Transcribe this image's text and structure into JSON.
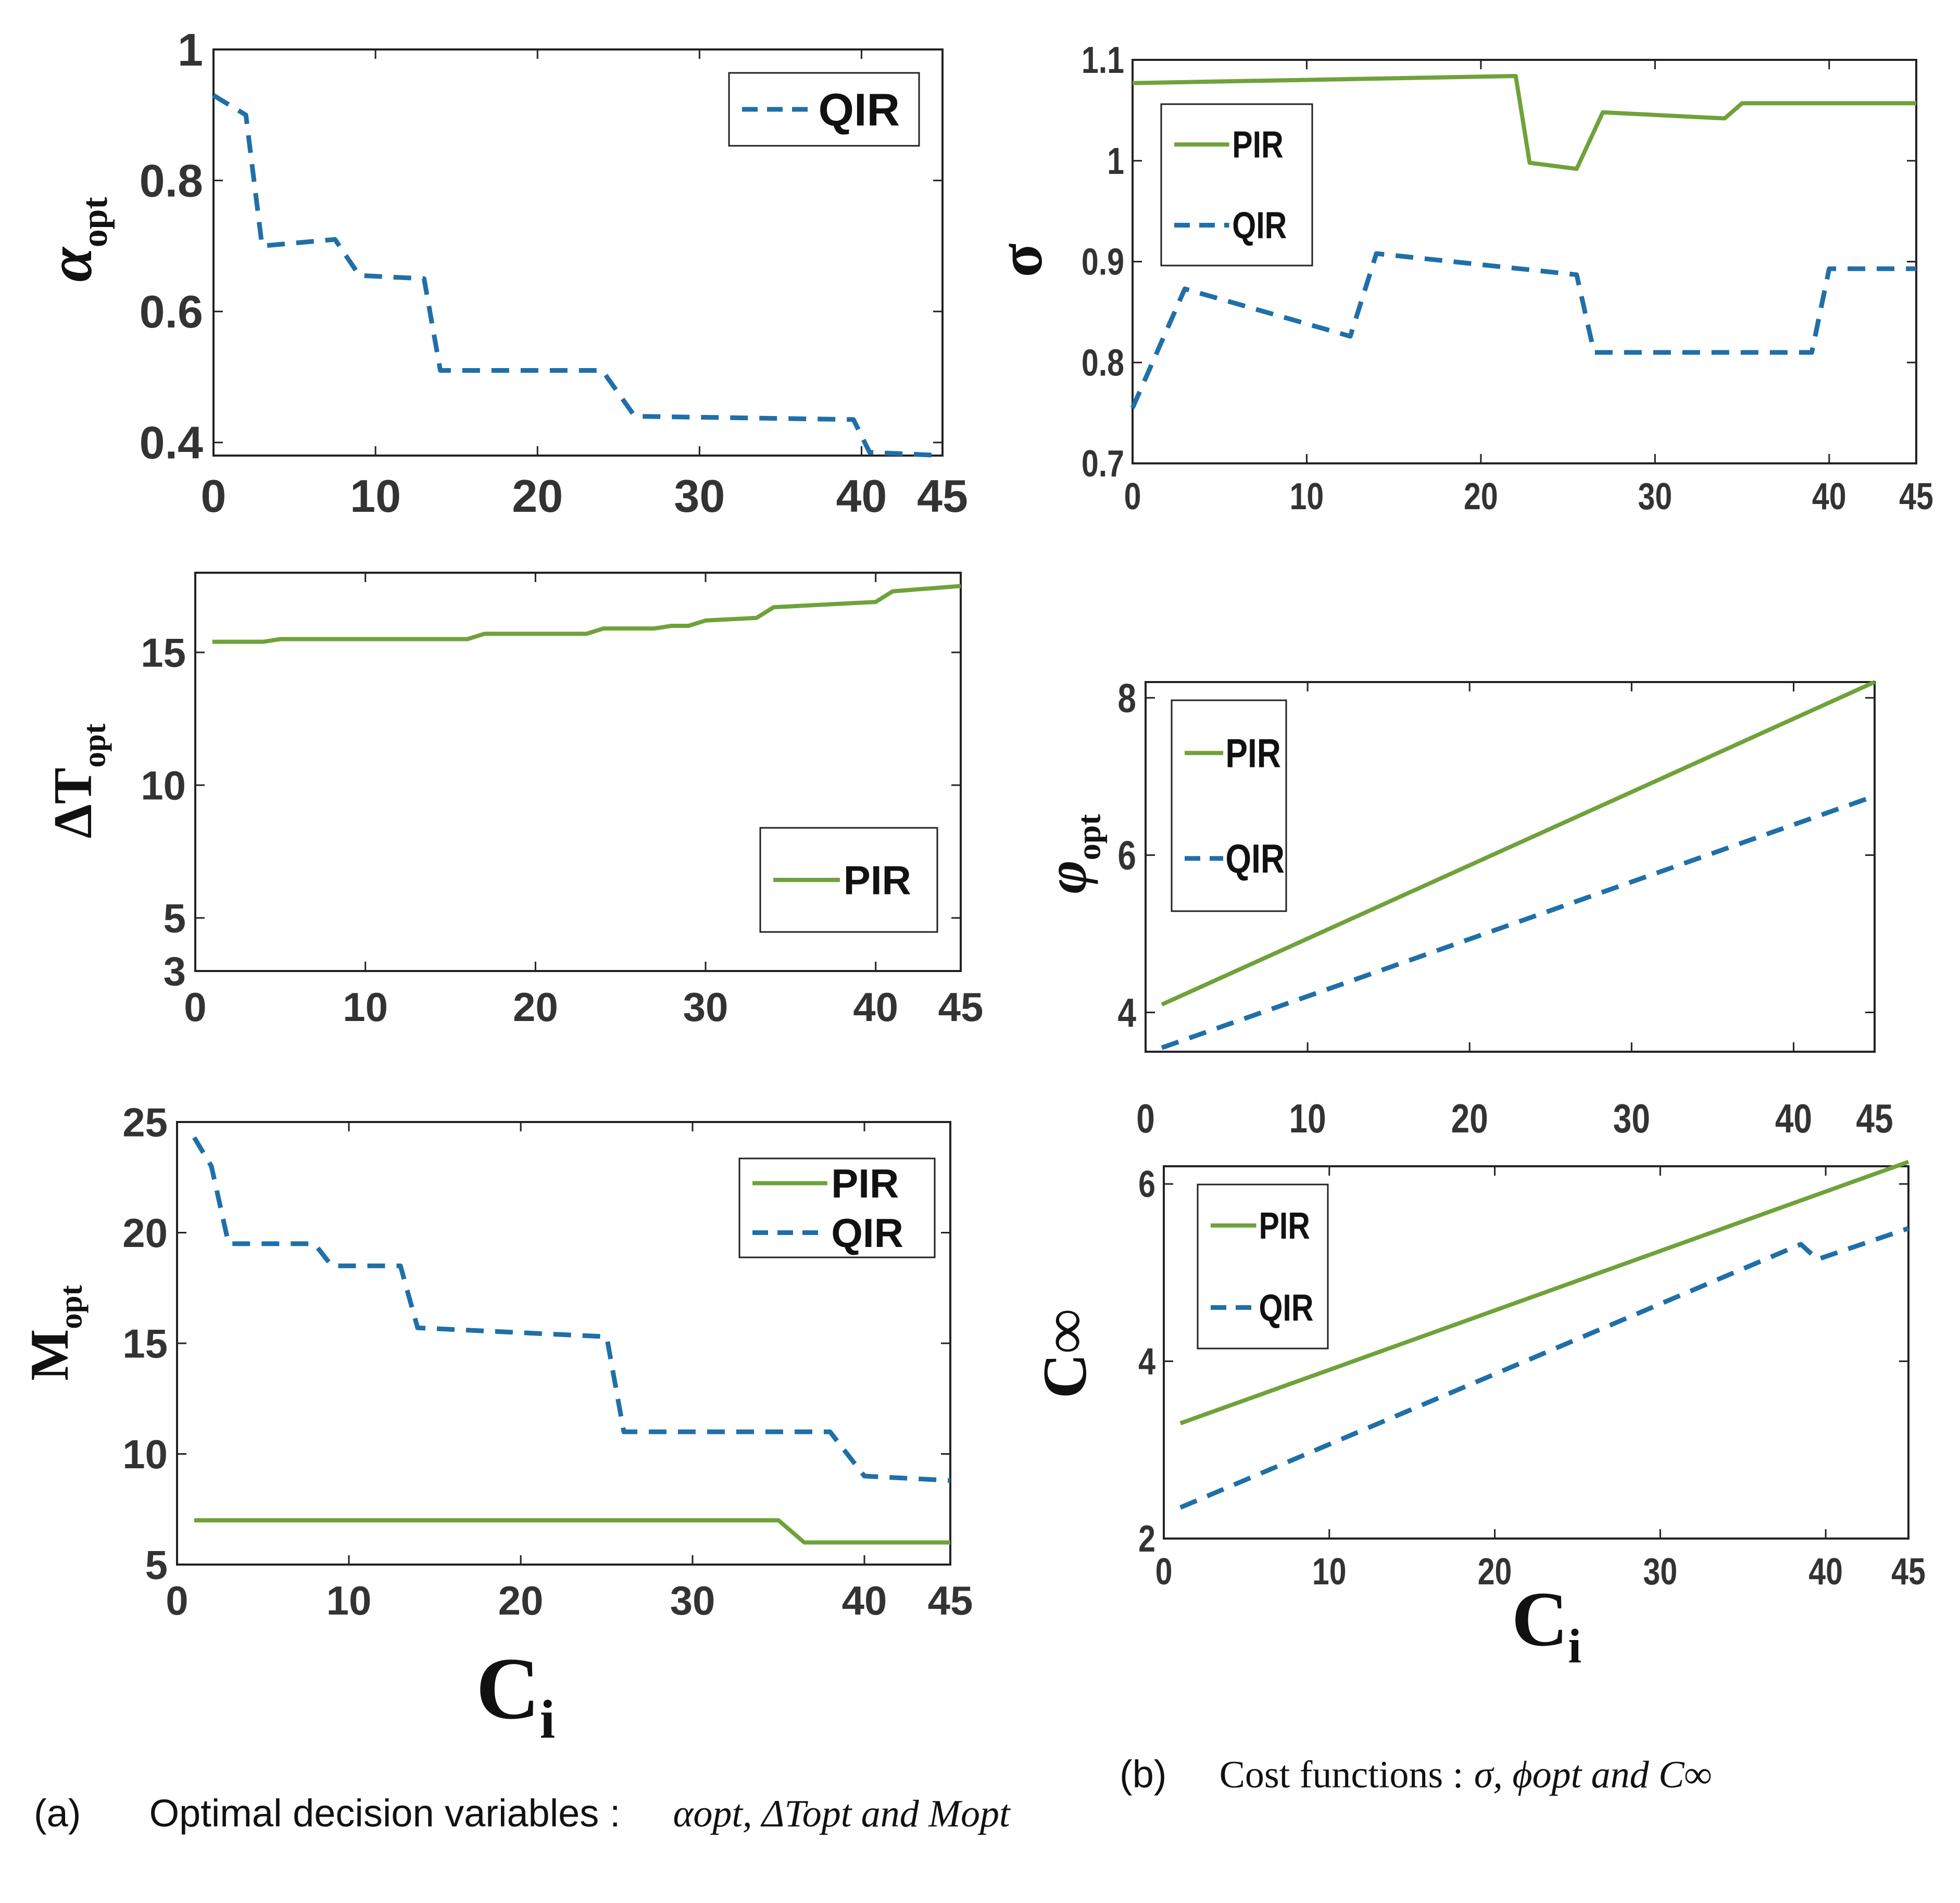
{
  "colors": {
    "pir": "#6fa23a",
    "qir": "#1f6fa8",
    "frame": "#222222"
  },
  "chart_data": [
    {
      "id": "alpha",
      "type": "line",
      "ylabel_main": "α",
      "ylabel_sub": "opt",
      "xlim": [
        0,
        45
      ],
      "ylim": [
        0.38,
        1.0
      ],
      "xticks": [
        "0",
        "10",
        "20",
        "30",
        "40",
        "45"
      ],
      "xtick_values": [
        0,
        10,
        20,
        30,
        40,
        45
      ],
      "yticks": [
        "0.4",
        "0.6",
        "0.8",
        "1"
      ],
      "ytick_values": [
        0.4,
        0.6,
        0.8,
        1.0
      ],
      "legend": [
        "QIR"
      ],
      "legend_position": "top-right",
      "series": [
        {
          "name": "QIR",
          "style": "dashed",
          "x": [
            0,
            2,
            3,
            7.5,
            9,
            13,
            14,
            24,
            26,
            39.5,
            40.5,
            45
          ],
          "y": [
            0.93,
            0.9,
            0.7,
            0.71,
            0.655,
            0.65,
            0.51,
            0.51,
            0.44,
            0.435,
            0.385,
            0.38
          ]
        }
      ]
    },
    {
      "id": "deltaT",
      "type": "line",
      "ylabel_main": "ΔT",
      "ylabel_sub": "opt",
      "xlim": [
        0,
        45
      ],
      "ylim": [
        3,
        18
      ],
      "xticks": [
        "0",
        "10",
        "20",
        "30",
        "40",
        "45"
      ],
      "xtick_values": [
        0,
        10,
        20,
        30,
        40,
        45
      ],
      "yticks": [
        "3",
        "5",
        "10",
        "15"
      ],
      "ytick_values": [
        3,
        5,
        10,
        15
      ],
      "legend": [
        "PIR"
      ],
      "legend_position": "bottom-right",
      "series": [
        {
          "name": "PIR",
          "style": "solid",
          "x": [
            1,
            4,
            5,
            16,
            17,
            23,
            24,
            27,
            28,
            29,
            30,
            33,
            34,
            40,
            41,
            45
          ],
          "y": [
            15.4,
            15.4,
            15.5,
            15.5,
            15.7,
            15.7,
            15.9,
            15.9,
            16.0,
            16.0,
            16.2,
            16.3,
            16.7,
            16.9,
            17.3,
            17.5
          ]
        }
      ]
    },
    {
      "id": "M",
      "type": "line",
      "ylabel_main": "M",
      "ylabel_sub": "opt",
      "xlabel_main": "C",
      "xlabel_sub": "i",
      "xlim": [
        0,
        45
      ],
      "ylim": [
        5,
        25
      ],
      "xticks": [
        "0",
        "10",
        "20",
        "30",
        "40",
        "45"
      ],
      "xtick_values": [
        0,
        10,
        20,
        30,
        40,
        45
      ],
      "yticks": [
        "5",
        "10",
        "15",
        "20",
        "25"
      ],
      "ytick_values": [
        5,
        10,
        15,
        20,
        25
      ],
      "legend": [
        "PIR",
        "QIR"
      ],
      "legend_position": "top-right",
      "series": [
        {
          "name": "PIR",
          "style": "solid",
          "x": [
            1,
            35,
            36.5,
            45
          ],
          "y": [
            7.0,
            7.0,
            6.0,
            6.0
          ]
        },
        {
          "name": "QIR",
          "style": "dashed",
          "x": [
            1,
            2,
            3,
            8,
            9,
            13,
            14,
            25,
            26,
            38,
            40,
            45
          ],
          "y": [
            24.3,
            23,
            19.5,
            19.5,
            18.5,
            18.5,
            15.7,
            15.3,
            11.0,
            11.0,
            9.0,
            8.8
          ]
        }
      ]
    },
    {
      "id": "sigma",
      "type": "line",
      "ylabel_main": "σ",
      "xlim": [
        0,
        45
      ],
      "ylim": [
        0.7,
        1.1
      ],
      "xticks": [
        "0",
        "10",
        "20",
        "30",
        "40",
        "45"
      ],
      "xtick_values": [
        0,
        10,
        20,
        30,
        40,
        45
      ],
      "yticks": [
        "0.7",
        "0.8",
        "0.9",
        "1",
        "1.1"
      ],
      "ytick_values": [
        0.7,
        0.8,
        0.9,
        1.0,
        1.1
      ],
      "legend": [
        "PIR",
        "QIR"
      ],
      "legend_position": "top-left",
      "series": [
        {
          "name": "PIR",
          "style": "solid",
          "x": [
            0,
            22,
            22.8,
            25.5,
            27,
            34,
            35,
            45
          ],
          "y": [
            1.077,
            1.084,
            0.998,
            0.992,
            1.048,
            1.042,
            1.057,
            1.057
          ]
        },
        {
          "name": "QIR",
          "style": "dashed",
          "x": [
            0,
            3,
            12.5,
            14,
            25.5,
            26.5,
            39,
            40,
            45
          ],
          "y": [
            0.755,
            0.873,
            0.826,
            0.908,
            0.887,
            0.81,
            0.81,
            0.893,
            0.893
          ]
        }
      ]
    },
    {
      "id": "phi",
      "type": "line",
      "ylabel_main": "φ",
      "ylabel_sub": "opt",
      "xlim": [
        0,
        45
      ],
      "ylim": [
        3.5,
        8.2
      ],
      "xticks": [
        "0",
        "10",
        "20",
        "30",
        "40",
        "45"
      ],
      "xtick_values": [
        0,
        10,
        20,
        30,
        40,
        45
      ],
      "yticks": [
        "4",
        "6",
        "8"
      ],
      "ytick_values": [
        4,
        6,
        8
      ],
      "legend": [
        "PIR",
        "QIR"
      ],
      "legend_position": "top-left",
      "series": [
        {
          "name": "PIR",
          "style": "solid",
          "x": [
            1,
            45
          ],
          "y": [
            4.1,
            8.2
          ]
        },
        {
          "name": "QIR",
          "style": "dashed",
          "x": [
            1,
            45
          ],
          "y": [
            3.55,
            6.75
          ]
        }
      ]
    },
    {
      "id": "Cinf",
      "type": "line",
      "ylabel_main": "C∞",
      "xlabel_main": "C",
      "xlabel_sub": "i",
      "xlim": [
        0,
        45
      ],
      "ylim": [
        2,
        6.2
      ],
      "xticks": [
        "0",
        "10",
        "20",
        "30",
        "40",
        "45"
      ],
      "xtick_values": [
        0,
        10,
        20,
        30,
        40,
        45
      ],
      "yticks": [
        "2",
        "4",
        "6"
      ],
      "ytick_values": [
        2,
        4,
        6
      ],
      "legend": [
        "PIR",
        "QIR"
      ],
      "legend_position": "top-left",
      "series": [
        {
          "name": "PIR",
          "style": "solid",
          "x": [
            1,
            45
          ],
          "y": [
            3.3,
            6.25
          ]
        },
        {
          "name": "QIR",
          "style": "dashed",
          "x": [
            1,
            38.5,
            39.5,
            45
          ],
          "y": [
            2.35,
            5.32,
            5.15,
            5.5
          ]
        }
      ]
    }
  ],
  "captions": {
    "a": {
      "label": "(a)",
      "text": "Optimal decision variables :",
      "vars": "αopt, ΔTopt and Mopt"
    },
    "b": {
      "label": "(b)",
      "text": "Cost functions :",
      "vars": "σ, ϕopt and C∞"
    }
  }
}
